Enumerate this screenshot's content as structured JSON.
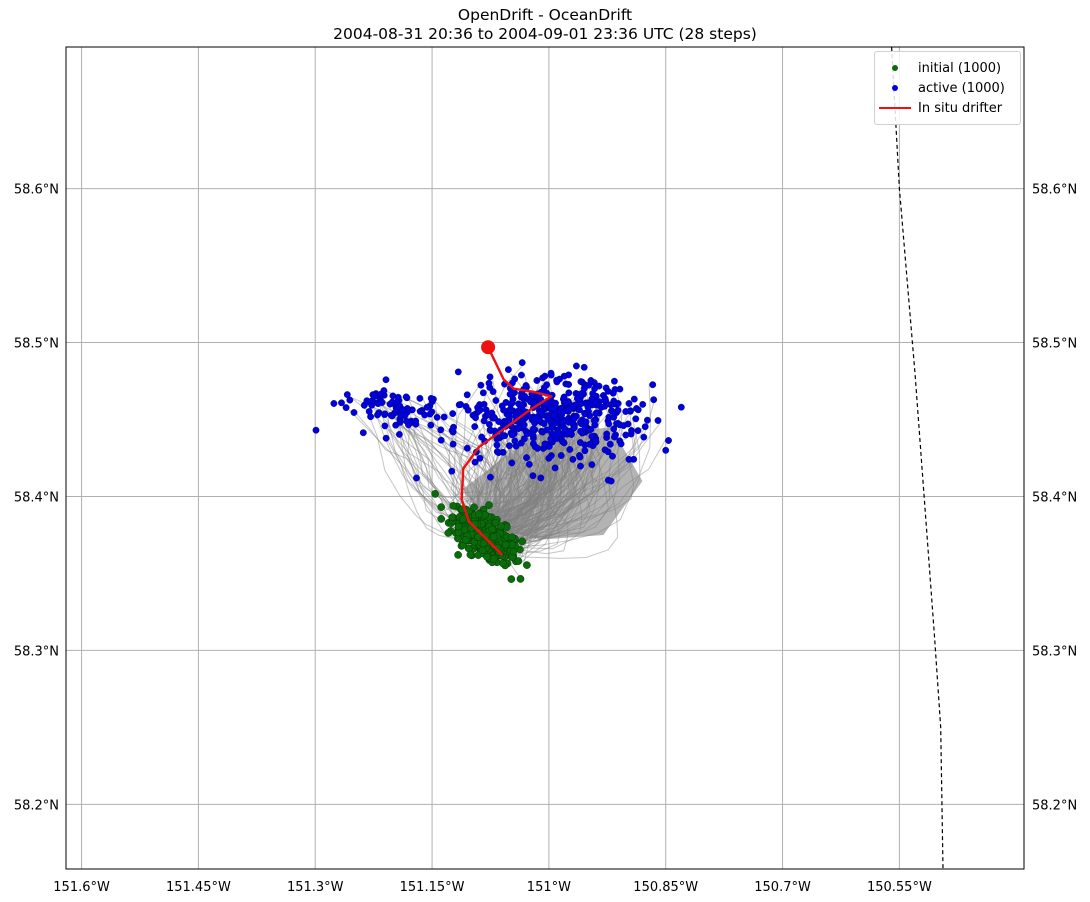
{
  "figure": {
    "title_line1": "OpenDrift - OceanDrift",
    "title_line2": "2004-08-31 20:36 to 2004-09-01 23:36 UTC (28 steps)"
  },
  "legend": {
    "items": [
      {
        "label": "initial (1000)",
        "color": "#0a6b0a",
        "kind": "dot"
      },
      {
        "label": "active (1000)",
        "color": "#0000dd",
        "kind": "dot"
      },
      {
        "label": "In situ drifter",
        "color": "#ee1111",
        "kind": "line"
      }
    ]
  },
  "map": {
    "lon_range": [
      -151.62,
      -150.39
    ],
    "lat_range": [
      58.158,
      58.692
    ],
    "grid": true,
    "lon_ticks": [
      {
        "value": -151.6,
        "label": "151.6°W"
      },
      {
        "value": -151.45,
        "label": "151.45°W"
      },
      {
        "value": -151.3,
        "label": "151.3°W"
      },
      {
        "value": -151.15,
        "label": "151.15°W"
      },
      {
        "value": -151.0,
        "label": "151°W"
      },
      {
        "value": -150.85,
        "label": "150.85°W"
      },
      {
        "value": -150.7,
        "label": "150.7°W"
      },
      {
        "value": -150.55,
        "label": "150.55°W"
      }
    ],
    "lat_ticks": [
      {
        "value": 58.2,
        "label": "58.2°N"
      },
      {
        "value": 58.3,
        "label": "58.3°N"
      },
      {
        "value": 58.4,
        "label": "58.4°N"
      },
      {
        "value": 58.5,
        "label": "58.5°N"
      },
      {
        "value": 58.6,
        "label": "58.6°N"
      }
    ],
    "colors": {
      "grid": "#b0b0b0",
      "trajectory": "#808080",
      "initial": "#0a6b0a",
      "active": "#0000dd",
      "drifter": "#ee1111",
      "boundary": "#000000"
    },
    "drifter_track": [
      [
        -151.06,
        58.362
      ],
      [
        -151.103,
        58.384
      ],
      [
        -151.112,
        58.398
      ],
      [
        -151.11,
        58.418
      ],
      [
        -151.09,
        58.432
      ],
      [
        -151.025,
        58.456
      ],
      [
        -150.997,
        58.465
      ],
      [
        -151.02,
        58.468
      ],
      [
        -151.045,
        58.47
      ],
      [
        -151.058,
        58.476
      ],
      [
        -151.078,
        58.497
      ]
    ],
    "drifter_end": [
      -151.078,
      58.497
    ],
    "boundary_line": [
      [
        -150.56,
        58.692
      ],
      [
        -150.55,
        58.6
      ],
      [
        -150.53,
        58.48
      ],
      [
        -150.505,
        58.31
      ],
      [
        -150.497,
        58.25
      ],
      [
        -150.494,
        58.158
      ]
    ]
  }
}
